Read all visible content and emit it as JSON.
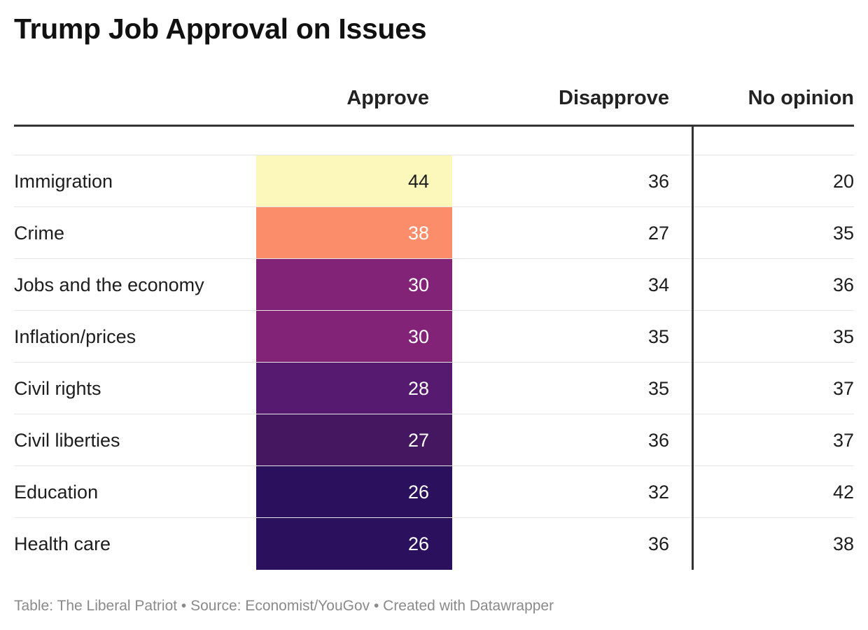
{
  "title": "Trump Job Approval on Issues",
  "columns": {
    "approve": "Approve",
    "disapprove": "Disapprove",
    "no_opinion": "No opinion"
  },
  "footer": "Table: The Liberal Patriot • Source: Economist/YouGov • Created with Datawrapper",
  "colors": {
    "approve_44": "#fcf8bb",
    "approve_38": "#fb8d6a",
    "approve_30": "#822378",
    "approve_28": "#561b70",
    "approve_27": "#451761",
    "approve_26": "#2b105e",
    "rule": "#333333",
    "gridline": "#e6e6e6",
    "footer_text": "#8a8a8a"
  },
  "chart_data": {
    "type": "table",
    "title": "Trump Job Approval on Issues",
    "columns": [
      "",
      "Approve",
      "Disapprove",
      "No opinion"
    ],
    "rows": [
      {
        "issue": "Immigration",
        "approve": 44,
        "disapprove": 36,
        "no_opinion": 20
      },
      {
        "issue": "Crime",
        "approve": 38,
        "disapprove": 27,
        "no_opinion": 35
      },
      {
        "issue": "Jobs and the economy",
        "approve": 30,
        "disapprove": 34,
        "no_opinion": 36
      },
      {
        "issue": "Inflation/prices",
        "approve": 30,
        "disapprove": 35,
        "no_opinion": 35
      },
      {
        "issue": "Civil rights",
        "approve": 28,
        "disapprove": 35,
        "no_opinion": 37
      },
      {
        "issue": "Civil liberties",
        "approve": 27,
        "disapprove": 36,
        "no_opinion": 37
      },
      {
        "issue": "Education",
        "approve": 26,
        "disapprove": 32,
        "no_opinion": 42
      },
      {
        "issue": "Health care",
        "approve": 26,
        "disapprove": 36,
        "no_opinion": 38
      }
    ]
  }
}
